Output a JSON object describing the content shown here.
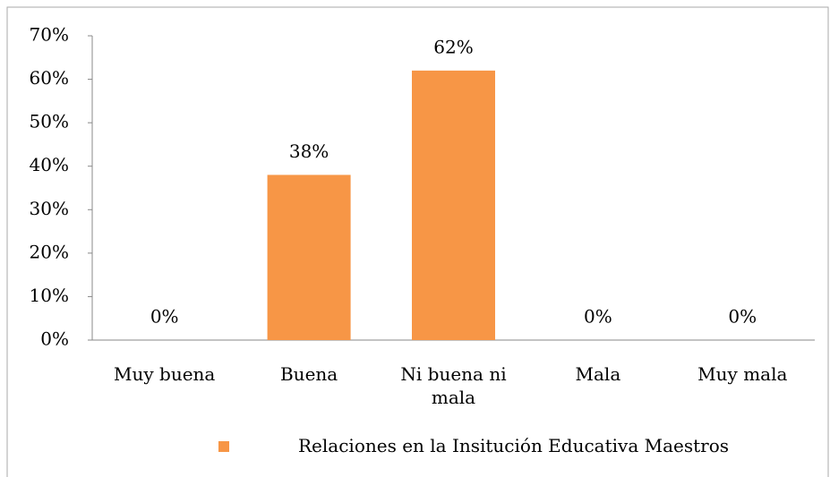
{
  "chart_data": {
    "type": "bar",
    "categories": [
      "Muy buena",
      "Buena",
      "Ni buena ni mala",
      "Mala",
      "Muy mala"
    ],
    "series": [
      {
        "name": "Relaciones en la Insitución Educativa Maestros",
        "color": "#f79646",
        "values": [
          0,
          38,
          62,
          0,
          0
        ],
        "value_labels": [
          "0%",
          "38%",
          "62%",
          "0%",
          "0%"
        ]
      }
    ],
    "ylim": [
      0,
      70
    ],
    "yticks": [
      {
        "value": 0,
        "label": "0%"
      },
      {
        "value": 10,
        "label": "10%"
      },
      {
        "value": 20,
        "label": "20%"
      },
      {
        "value": 30,
        "label": "30%"
      },
      {
        "value": 40,
        "label": "40%"
      },
      {
        "value": 50,
        "label": "50%"
      },
      {
        "value": 60,
        "label": "60%"
      },
      {
        "value": 70,
        "label": "70%"
      }
    ],
    "grid": false,
    "legend": "bottom"
  }
}
